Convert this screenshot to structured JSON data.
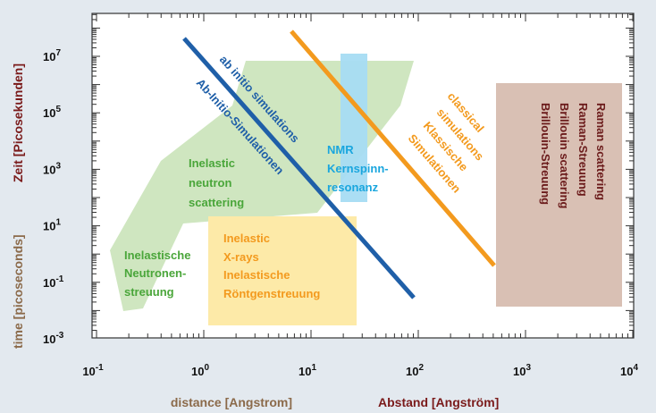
{
  "colors": {
    "background": "#e3e9ef",
    "plot_area": "#ffffff",
    "axis": "#333333",
    "axis_label_dark_red": "#7a1a1a",
    "axis_label_brown": "#8b6a4a",
    "green_region": "#cfe6c0",
    "yellow_region": "#fdeaa8",
    "blue_region": "#a7dcf3",
    "rose_region": "#d9c0b4",
    "blue_line": "#1f5fa8",
    "orange_line": "#f39a1e",
    "green_text": "#4aa63a",
    "yellow_text": "#f39a1e",
    "blue_text": "#1aa6de",
    "brown_text": "#6b1b1b",
    "dark_blue_text": "#1f5fa8"
  },
  "axes": {
    "x_label_en": "distance [Angstrom]",
    "x_label_de": "Abstand [Angström]",
    "y_label_en": "time [picoseconds]",
    "y_label_de": "Zeit [Picosekunden]",
    "x_scale": "log",
    "y_scale": "log",
    "x_range": [
      0.1,
      10000
    ],
    "y_range": [
      0.001,
      100000000
    ],
    "x_ticks": [
      {
        "base": "10",
        "exp": "-1",
        "value": 0.1
      },
      {
        "base": "10",
        "exp": "0",
        "value": 1
      },
      {
        "base": "10",
        "exp": "1",
        "value": 10
      },
      {
        "base": "10",
        "exp": "2",
        "value": 100
      },
      {
        "base": "10",
        "exp": "3",
        "value": 1000
      },
      {
        "base": "10",
        "exp": "4",
        "value": 10000
      }
    ],
    "y_ticks": [
      {
        "base": "10",
        "exp": "-3",
        "value": 0.001
      },
      {
        "base": "10",
        "exp": "-1",
        "value": 0.1
      },
      {
        "base": "10",
        "exp": "1",
        "value": 10
      },
      {
        "base": "10",
        "exp": "3",
        "value": 1000
      },
      {
        "base": "10",
        "exp": "5",
        "value": 100000
      },
      {
        "base": "10",
        "exp": "7",
        "value": 10000000
      }
    ]
  },
  "regions": {
    "inelastic_neutron": {
      "lines_en": [
        "Inelastic",
        "neutron",
        "scattering"
      ],
      "lines_de": [
        "Inelastische",
        "Neutronen-",
        "streuung"
      ]
    },
    "inelastic_xray": {
      "lines": [
        "Inelastic",
        "X-rays",
        "Inelastische",
        "Röntgenstreuung"
      ]
    },
    "nmr": {
      "lines": [
        "NMR",
        "Kernspinn-",
        "resonanz"
      ]
    },
    "raman_brillouin": {
      "lines": [
        "Raman scattering",
        "Raman-Streuung",
        "Brillouin scattering",
        "Brillouin-Streuung"
      ]
    }
  },
  "lines": {
    "ab_initio": {
      "label_en": "ab initio simulations",
      "label_de": "Ab-Initio-Simulationen"
    },
    "classical": {
      "lines": [
        "classical",
        "simulations",
        "Klassische",
        "Simulationen"
      ]
    }
  }
}
